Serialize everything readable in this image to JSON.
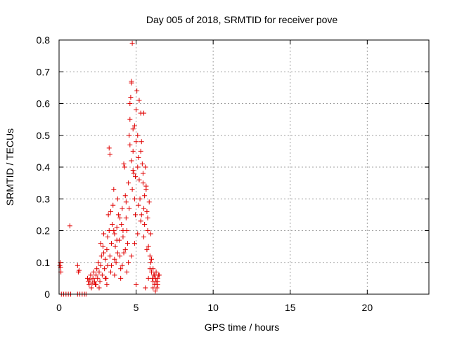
{
  "chart_data": {
    "type": "scatter",
    "title": "Day 005 of 2018, SRMTID for receiver pove",
    "xlabel": "GPS time / hours",
    "ylabel": "SRMTID / TECUs",
    "xlim": [
      0,
      24
    ],
    "ylim": [
      0,
      0.8
    ],
    "xticks": [
      0,
      5,
      10,
      15,
      20
    ],
    "yticks": [
      0,
      0.1,
      0.2,
      0.3,
      0.4,
      0.5,
      0.6,
      0.7,
      0.8
    ],
    "xtick_labels": [
      "0",
      "5",
      "10",
      "15",
      "20"
    ],
    "ytick_labels": [
      "0",
      "0.1",
      "0.2",
      "0.3",
      "0.4",
      "0.5",
      "0.6",
      "0.7",
      "0.8"
    ],
    "grid": true,
    "marker": "+",
    "color": "#e00000",
    "series": [
      {
        "name": "SRMTID",
        "points": [
          [
            0.05,
            0.09
          ],
          [
            0.08,
            0.1
          ],
          [
            0.1,
            0.085
          ],
          [
            0.12,
            0.07
          ],
          [
            0.15,
            0.0
          ],
          [
            0.3,
            0.0
          ],
          [
            0.45,
            0.0
          ],
          [
            0.6,
            0.0
          ],
          [
            0.75,
            0.0
          ],
          [
            0.7,
            0.215
          ],
          [
            1.2,
            0.0
          ],
          [
            1.35,
            0.0
          ],
          [
            1.5,
            0.0
          ],
          [
            1.65,
            0.0
          ],
          [
            1.75,
            0.0
          ],
          [
            1.2,
            0.09
          ],
          [
            1.3,
            0.075
          ],
          [
            1.25,
            0.07
          ],
          [
            1.85,
            0.05
          ],
          [
            1.9,
            0.04
          ],
          [
            1.95,
            0.03
          ],
          [
            2.0,
            0.045
          ],
          [
            2.05,
            0.06
          ],
          [
            2.1,
            0.02
          ],
          [
            2.15,
            0.035
          ],
          [
            2.2,
            0.05
          ],
          [
            2.25,
            0.07
          ],
          [
            2.3,
            0.04
          ],
          [
            2.35,
            0.03
          ],
          [
            2.4,
            0.06
          ],
          [
            2.45,
            0.08
          ],
          [
            2.5,
            0.05
          ],
          [
            2.55,
            0.1
          ],
          [
            2.6,
            0.07
          ],
          [
            2.65,
            0.04
          ],
          [
            2.7,
            0.09
          ],
          [
            2.75,
            0.12
          ],
          [
            2.8,
            0.06
          ],
          [
            2.85,
            0.15
          ],
          [
            2.9,
            0.19
          ],
          [
            2.95,
            0.08
          ],
          [
            3.0,
            0.11
          ],
          [
            3.05,
            0.05
          ],
          [
            3.1,
            0.14
          ],
          [
            3.15,
            0.18
          ],
          [
            3.2,
            0.25
          ],
          [
            3.25,
            0.2
          ],
          [
            3.3,
            0.12
          ],
          [
            3.35,
            0.07
          ],
          [
            3.4,
            0.09
          ],
          [
            3.45,
            0.22
          ],
          [
            3.5,
            0.28
          ],
          [
            3.55,
            0.33
          ],
          [
            3.6,
            0.19
          ],
          [
            3.65,
            0.15
          ],
          [
            3.7,
            0.1
          ],
          [
            3.75,
            0.21
          ],
          [
            3.8,
            0.3
          ],
          [
            3.85,
            0.25
          ],
          [
            3.9,
            0.17
          ],
          [
            3.95,
            0.12
          ],
          [
            4.0,
            0.08
          ],
          [
            4.05,
            0.22
          ],
          [
            4.1,
            0.27
          ],
          [
            4.15,
            0.18
          ],
          [
            4.2,
            0.13
          ],
          [
            4.25,
            0.4
          ],
          [
            4.3,
            0.31
          ],
          [
            4.35,
            0.24
          ],
          [
            4.4,
            0.2
          ],
          [
            4.45,
            0.16
          ],
          [
            4.5,
            0.35
          ],
          [
            4.55,
            0.5
          ],
          [
            4.6,
            0.55
          ],
          [
            4.65,
            0.62
          ],
          [
            4.7,
            0.67
          ],
          [
            4.75,
            0.79
          ],
          [
            4.8,
            0.45
          ],
          [
            4.85,
            0.38
          ],
          [
            4.9,
            0.3
          ],
          [
            4.95,
            0.25
          ],
          [
            5.0,
            0.58
          ],
          [
            5.05,
            0.64
          ],
          [
            5.1,
            0.5
          ],
          [
            5.15,
            0.43
          ],
          [
            5.2,
            0.36
          ],
          [
            5.25,
            0.3
          ],
          [
            5.3,
            0.57
          ],
          [
            5.35,
            0.48
          ],
          [
            5.4,
            0.41
          ],
          [
            5.45,
            0.35
          ],
          [
            5.5,
            0.27
          ],
          [
            5.55,
            0.22
          ],
          [
            5.6,
            0.4
          ],
          [
            5.65,
            0.33
          ],
          [
            5.7,
            0.26
          ],
          [
            5.75,
            0.2
          ],
          [
            5.8,
            0.15
          ],
          [
            5.85,
            0.29
          ],
          [
            5.9,
            0.12
          ],
          [
            5.95,
            0.1
          ],
          [
            6.0,
            0.07
          ],
          [
            6.05,
            0.05
          ],
          [
            6.1,
            0.04
          ],
          [
            6.15,
            0.06
          ],
          [
            6.2,
            0.03
          ],
          [
            6.25,
            0.05
          ],
          [
            6.3,
            0.07
          ],
          [
            6.35,
            0.02
          ],
          [
            6.4,
            0.04
          ],
          [
            6.45,
            0.06
          ],
          [
            3.25,
            0.46
          ],
          [
            3.3,
            0.44
          ],
          [
            4.2,
            0.41
          ],
          [
            4.6,
            0.6
          ],
          [
            4.7,
            0.665
          ],
          [
            5.2,
            0.61
          ],
          [
            5.5,
            0.57
          ],
          [
            4.9,
            0.53
          ],
          [
            4.8,
            0.52
          ],
          [
            3.0,
            0.05
          ],
          [
            3.1,
            0.03
          ],
          [
            2.6,
            0.02
          ],
          [
            2.4,
            0.03
          ],
          [
            3.6,
            0.06
          ],
          [
            4.0,
            0.05
          ],
          [
            4.4,
            0.07
          ],
          [
            5.0,
            0.03
          ],
          [
            5.6,
            0.02
          ],
          [
            5.8,
            0.05
          ],
          [
            6.1,
            0.08
          ],
          [
            6.4,
            0.03
          ],
          [
            3.4,
            0.16
          ],
          [
            3.6,
            0.11
          ],
          [
            3.8,
            0.13
          ],
          [
            4.1,
            0.09
          ],
          [
            4.3,
            0.14
          ],
          [
            4.5,
            0.1
          ],
          [
            4.7,
            0.12
          ],
          [
            4.9,
            0.16
          ],
          [
            5.1,
            0.19
          ],
          [
            5.3,
            0.23
          ],
          [
            5.5,
            0.18
          ],
          [
            5.7,
            0.14
          ],
          [
            5.9,
            0.08
          ],
          [
            6.0,
            0.11
          ],
          [
            2.7,
            0.16
          ],
          [
            2.9,
            0.13
          ],
          [
            3.15,
            0.09
          ],
          [
            3.35,
            0.26
          ],
          [
            3.55,
            0.2
          ],
          [
            3.75,
            0.17
          ],
          [
            3.95,
            0.24
          ],
          [
            4.15,
            0.2
          ],
          [
            4.35,
            0.29
          ],
          [
            4.55,
            0.27
          ],
          [
            4.75,
            0.33
          ],
          [
            4.95,
            0.37
          ],
          [
            5.15,
            0.28
          ],
          [
            5.35,
            0.25
          ],
          [
            5.55,
            0.31
          ],
          [
            5.75,
            0.24
          ],
          [
            5.95,
            0.19
          ],
          [
            4.6,
            0.47
          ],
          [
            4.7,
            0.42
          ],
          [
            4.8,
            0.39
          ],
          [
            5.0,
            0.48
          ],
          [
            5.1,
            0.4
          ],
          [
            5.3,
            0.45
          ],
          [
            5.45,
            0.38
          ],
          [
            5.65,
            0.34
          ],
          [
            6.2,
            0.06
          ],
          [
            6.3,
            0.04
          ],
          [
            6.4,
            0.05
          ],
          [
            6.5,
            0.06
          ],
          [
            6.1,
            0.02
          ],
          [
            6.25,
            0.01
          ]
        ]
      }
    ]
  }
}
